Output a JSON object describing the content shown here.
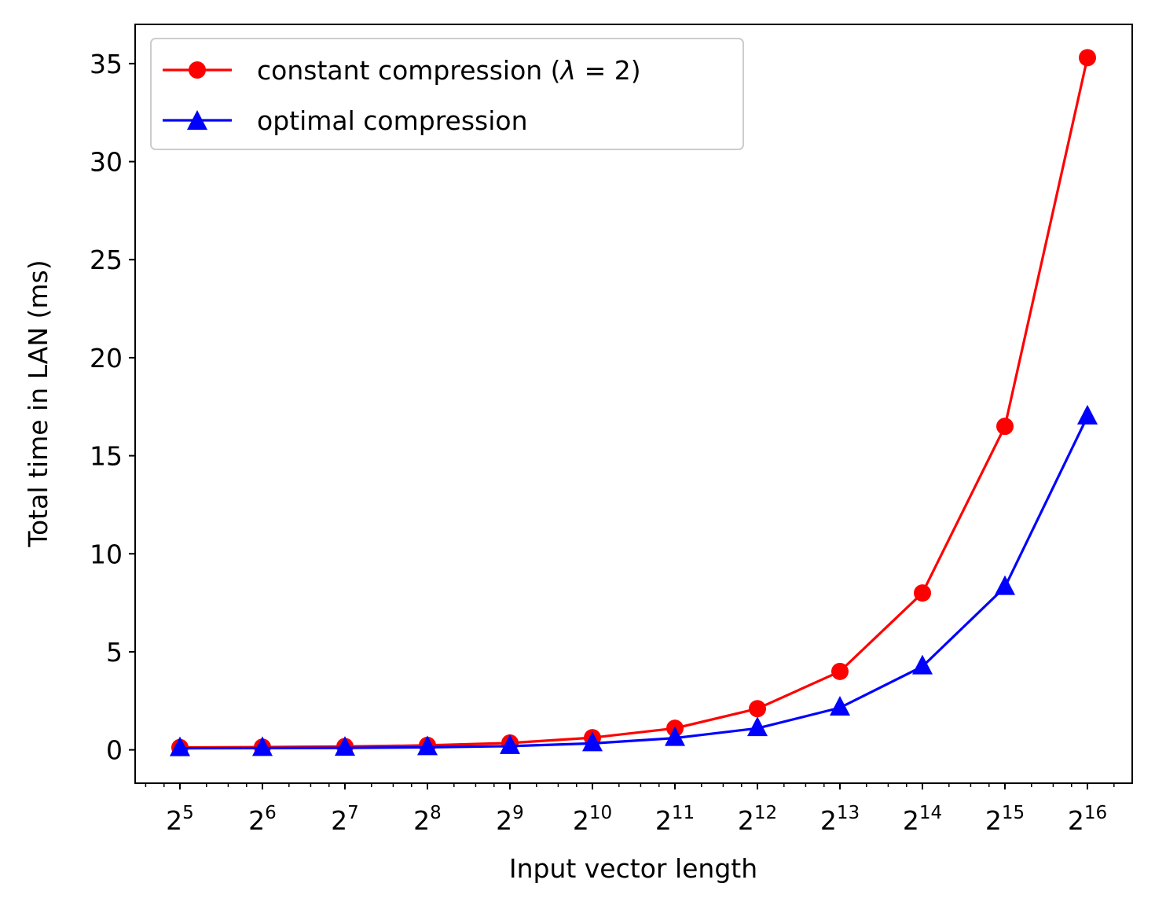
{
  "chart_data": {
    "type": "line",
    "xlabel": "Input vector length",
    "ylabel": "Total time in LAN (ms)",
    "x_scale": "log2",
    "x": [
      32,
      64,
      128,
      256,
      512,
      1024,
      2048,
      4096,
      8192,
      16384,
      32768,
      65536
    ],
    "x_tick_labels": [
      {
        "base": "2",
        "exp": "5"
      },
      {
        "base": "2",
        "exp": "6"
      },
      {
        "base": "2",
        "exp": "7"
      },
      {
        "base": "2",
        "exp": "8"
      },
      {
        "base": "2",
        "exp": "9"
      },
      {
        "base": "2",
        "exp": "10"
      },
      {
        "base": "2",
        "exp": "11"
      },
      {
        "base": "2",
        "exp": "12"
      },
      {
        "base": "2",
        "exp": "13"
      },
      {
        "base": "2",
        "exp": "14"
      },
      {
        "base": "2",
        "exp": "15"
      },
      {
        "base": "2",
        "exp": "16"
      }
    ],
    "y_ticks": [
      0,
      5,
      10,
      15,
      20,
      25,
      30,
      35
    ],
    "ylim": [
      -1.7,
      37.0
    ],
    "grid": false,
    "legend": "top-left",
    "series": [
      {
        "name": "constant compression (λ = 2)",
        "name_parts": {
          "prefix": "constant compression (",
          "symbol": "λ",
          "suffix": " = 2)"
        },
        "color": "#ff0000",
        "marker": "circle",
        "values": [
          0.12,
          0.14,
          0.17,
          0.23,
          0.35,
          0.62,
          1.1,
          2.1,
          4.0,
          8.0,
          16.5,
          35.3
        ]
      },
      {
        "name": "optimal compression",
        "color": "#0000ff",
        "marker": "triangle",
        "values": [
          0.08,
          0.09,
          0.1,
          0.13,
          0.19,
          0.33,
          0.6,
          1.1,
          2.15,
          4.25,
          8.3,
          17.0
        ]
      }
    ]
  }
}
